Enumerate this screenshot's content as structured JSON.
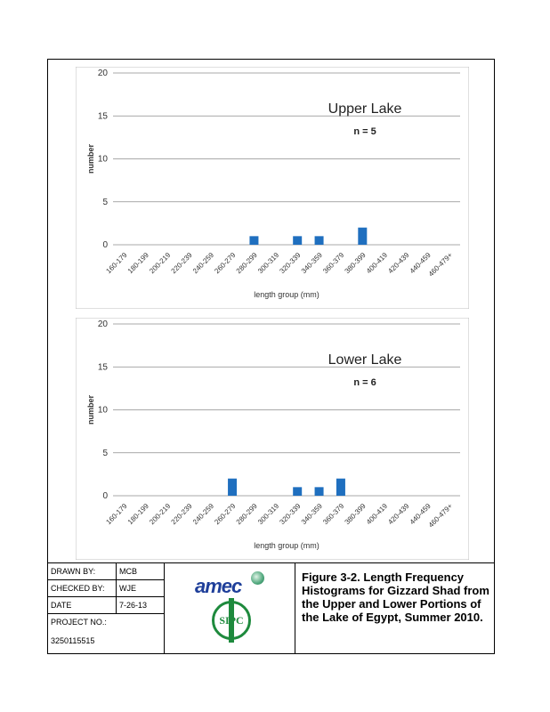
{
  "chart_data": [
    {
      "type": "bar",
      "title": "Upper Lake",
      "annotation": "n = 5",
      "ylabel": "number",
      "xlabel": "length group (mm)",
      "ylim": [
        0,
        20
      ],
      "yticks": [
        0,
        5,
        10,
        15,
        20
      ],
      "categories": [
        "160-179",
        "180-199",
        "200-219",
        "220-239",
        "240-259",
        "260-279",
        "280-299",
        "300-319",
        "320-339",
        "340-359",
        "360-379",
        "380-399",
        "400-419",
        "420-439",
        "440-459",
        "460-479+"
      ],
      "values": [
        0,
        0,
        0,
        0,
        0,
        0,
        1,
        0,
        1,
        1,
        0,
        2,
        0,
        0,
        0,
        0
      ],
      "grid": true,
      "bar_color": "#1f6fbf"
    },
    {
      "type": "bar",
      "title": "Lower Lake",
      "annotation": "n = 6",
      "ylabel": "number",
      "xlabel": "length group (mm)",
      "ylim": [
        0,
        20
      ],
      "yticks": [
        0,
        5,
        10,
        15,
        20
      ],
      "categories": [
        "160-179",
        "180-199",
        "200-219",
        "220-239",
        "240-259",
        "260-279",
        "280-299",
        "300-319",
        "320-339",
        "340-359",
        "360-379",
        "380-399",
        "400-419",
        "420-439",
        "440-459",
        "460-479+"
      ],
      "values": [
        0,
        0,
        0,
        0,
        0,
        2,
        0,
        0,
        1,
        1,
        2,
        0,
        0,
        0,
        0,
        0
      ],
      "grid": true,
      "bar_color": "#1f6fbf"
    }
  ],
  "title_block": {
    "drawn_by_label": "DRAWN BY:",
    "drawn_by_value": "MCB",
    "checked_by_label": "CHECKED BY:",
    "checked_by_value": "WJE",
    "date_label": "DATE",
    "date_value": "7-26-13",
    "project_no_label": "PROJECT NO.:",
    "project_no_value": "3250115515",
    "logo_amec": "amec",
    "logo_sipc": "SIPC",
    "figure_caption": "Figure 3-2.  Length Frequency Histograms for Gizzard Shad from the Upper and Lower Portions of the Lake of Egypt, Summer 2010."
  }
}
